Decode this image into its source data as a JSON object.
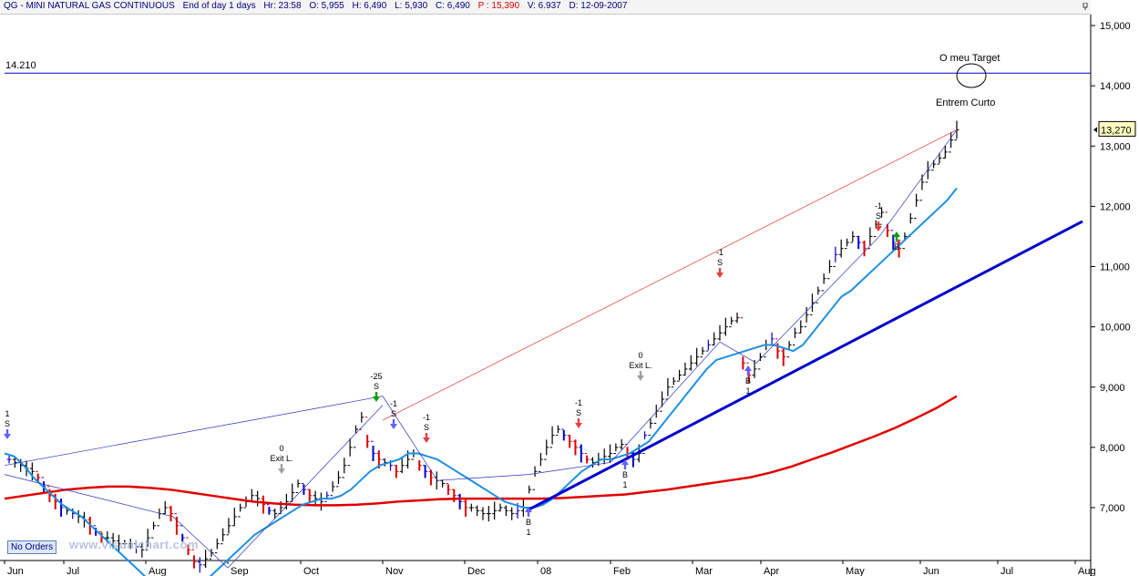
{
  "header": {
    "symbol": "QG - MINI NATURAL GAS CONTINUOUS",
    "period": "End of day 1 days",
    "hr": "Hr: 23:58",
    "open": "O: 5,955",
    "high": "H: 6,490",
    "low": "L: 5,930",
    "close": "C: 6,490",
    "p": "P : 15,390",
    "v": "V: 6.937",
    "d": "D: 12-09-2007"
  },
  "badges": {
    "no_orders": "No Orders",
    "watermark": "www.visualchart.com"
  },
  "colors": {
    "bars_up": "#000000",
    "bars_down_red": "#e00000",
    "bars_down_blue": "#0000d0",
    "ma_fast": "#1e90e0",
    "ma_slow": "#e00000",
    "trendline": "#0000cc",
    "price_line": "#202080",
    "annotation_green": "#00a000"
  },
  "chart_data": {
    "type": "line",
    "title": "QG - MINI NATURAL GAS CONTINUOUS",
    "y_ticks": [
      "15,000",
      "14,000",
      "13,000",
      "12,000",
      "11,000",
      "10,000",
      "9,000",
      "8,000",
      "7,000"
    ],
    "y_tick_values": [
      15000,
      14000,
      13000,
      12000,
      11000,
      10000,
      9000,
      8000,
      7000
    ],
    "x_ticks": [
      "Jun",
      "Jul",
      "Aug",
      "Sep",
      "Oct",
      "Nov",
      "Dec",
      "08",
      "Feb",
      "Mar",
      "Apr",
      "May",
      "Jun",
      "Jul",
      "Aug"
    ],
    "ylim": [
      6000,
      15500
    ],
    "last_price_label": "13,270",
    "last_price": 13270,
    "horizontal_line": {
      "label": "14.210",
      "value": 14210
    },
    "annotations": [
      {
        "text": "O meu Target",
        "color": "#00a000"
      },
      {
        "text": "Entrem Curto",
        "color": "#00a000"
      }
    ],
    "signals": [
      {
        "lines": [
          "1",
          "S"
        ],
        "arrow": "down",
        "color": "#6060ff"
      },
      {
        "lines": [
          "0",
          "Exit L."
        ],
        "arrow": "down",
        "color": "#a0a0a0"
      },
      {
        "lines": [
          "-25",
          "S"
        ],
        "arrow": "down",
        "color": "#00a000"
      },
      {
        "lines": [
          "-1",
          "S"
        ],
        "arrow": "down",
        "color": "#6060ff"
      },
      {
        "lines": [
          "-1",
          "S"
        ],
        "arrow": "down",
        "color": "#e04040"
      },
      {
        "lines": [
          "-1",
          "S"
        ],
        "arrow": "down",
        "color": "#e04040"
      },
      {
        "lines": [
          "0",
          "Exit L."
        ],
        "arrow": "down",
        "color": "#a0a0a0"
      },
      {
        "lines": [
          "-1",
          "S"
        ],
        "arrow": "down",
        "color": "#e04040"
      },
      {
        "lines": [
          "B",
          "1"
        ],
        "arrow": "up",
        "color": "#6060ff"
      },
      {
        "lines": [
          "B",
          "1"
        ],
        "arrow": "up",
        "color": "#6060ff"
      },
      {
        "lines": [
          "B",
          "1"
        ],
        "arrow": "up",
        "color": "#6060ff"
      },
      {
        "lines": [
          "-1",
          "S"
        ],
        "arrow": "down",
        "color": "#e04040"
      },
      {
        "lines": [
          "B"
        ],
        "arrow": "up",
        "color": "#00a000"
      }
    ],
    "series": [
      {
        "name": "",
        "style": "ohlc",
        "values": [
          7800,
          7750,
          7700,
          7650,
          7600,
          7500,
          7350,
          7200,
          7100,
          7000,
          6950,
          6900,
          6850,
          6800,
          6700,
          6600,
          6500,
          6500,
          6450,
          6400,
          6400,
          6400,
          6350,
          6300,
          6500,
          6700,
          6900,
          7000,
          6900,
          6700,
          6500,
          6300,
          6100,
          6050,
          6150,
          6250,
          6400,
          6550,
          6700,
          6850,
          7000,
          7100,
          7200,
          7150,
          7050,
          6950,
          6900,
          7000,
          7100,
          7250,
          7400,
          7300,
          7200,
          7150,
          7100,
          7200,
          7350,
          7500,
          7700,
          8000,
          8300,
          8500,
          8100,
          7900,
          7800,
          7750,
          7700,
          7600,
          7700,
          7800,
          7900,
          7700,
          7600,
          7500,
          7450,
          7400,
          7300,
          7200,
          7100,
          7000,
          7000,
          6950,
          6900,
          6900,
          6950,
          7000,
          6950,
          6900,
          6950,
          7000,
          7300,
          7600,
          7800,
          8000,
          8200,
          8300,
          8200,
          8100,
          8000,
          7900,
          7800,
          7750,
          7800,
          7850,
          7900,
          8000,
          8050,
          7900,
          7800,
          7900,
          8200,
          8400,
          8600,
          8800,
          9000,
          9100,
          9200,
          9300,
          9400,
          9500,
          9600,
          9700,
          9800,
          9900,
          10000,
          10100,
          10150,
          9400,
          9200,
          9300,
          9500,
          9700,
          9800,
          9600,
          9500,
          9700,
          9900,
          10000,
          10200,
          10400,
          10600,
          10800,
          11000,
          11200,
          11300,
          11400,
          11500,
          11400,
          11300,
          11500,
          11700,
          11900,
          11600,
          11400,
          11300,
          11500,
          11800,
          12100,
          12400,
          12600,
          12700,
          12800,
          12900,
          13100,
          13270
        ]
      },
      {
        "name": "",
        "style": "ma_fast",
        "values": [
          7900,
          7850,
          7700,
          7500,
          7350,
          7200,
          7050,
          6950,
          6850,
          6700,
          6550,
          6400,
          6250,
          6100,
          5950,
          5800,
          5700,
          5650,
          5650,
          5650,
          5700,
          5800,
          5950,
          6100,
          6250,
          6400,
          6550,
          6650,
          6750,
          6850,
          6950,
          7050,
          7100,
          7150,
          7150,
          7200,
          7300,
          7450,
          7600,
          7700,
          7750,
          7800,
          7900,
          7900,
          7850,
          7800,
          7700,
          7600,
          7500,
          7400,
          7300,
          7200,
          7100,
          7050,
          7000,
          7000,
          7050,
          7150,
          7300,
          7450,
          7600,
          7700,
          7800,
          7800,
          7850,
          7900,
          8000,
          8100,
          8300,
          8500,
          8700,
          8900,
          9100,
          9300,
          9450,
          9500,
          9550,
          9600,
          9650,
          9700,
          9700,
          9650,
          9600,
          9700,
          9900,
          10100,
          10300,
          10500,
          10600,
          10750,
          10900,
          11050,
          11200,
          11350,
          11500,
          11650,
          11800,
          11950,
          12100,
          12300
        ]
      },
      {
        "name": "",
        "style": "ma_slow",
        "values": [
          7150,
          7200,
          7250,
          7300,
          7330,
          7350,
          7350,
          7330,
          7300,
          7250,
          7200,
          7150,
          7100,
          7070,
          7050,
          7040,
          7040,
          7050,
          7070,
          7100,
          7120,
          7140,
          7150,
          7150,
          7150,
          7150,
          7150,
          7160,
          7180,
          7200,
          7220,
          7260,
          7300,
          7350,
          7400,
          7450,
          7500,
          7580,
          7680,
          7800,
          7920,
          8050,
          8180,
          8320,
          8480,
          8650,
          8850
        ]
      },
      {
        "name": "",
        "style": "trendline",
        "values": [
          6950,
          11750
        ]
      }
    ]
  }
}
